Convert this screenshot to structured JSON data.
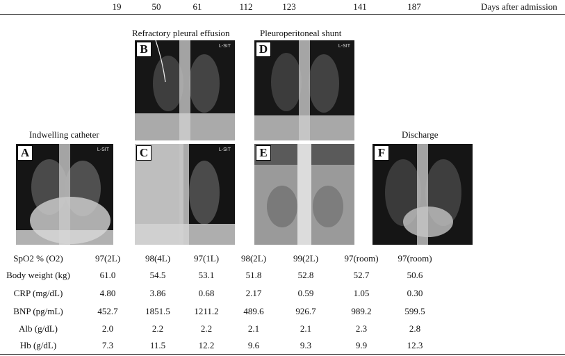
{
  "timeline": {
    "days": [
      "19",
      "50",
      "61",
      "112",
      "123",
      "141",
      "187"
    ],
    "axis_title": "Days after admission"
  },
  "captions": {
    "top_left": "Refractory pleural effusion",
    "top_right": "Pleuroperitoneal shunt",
    "bottom_left": "Indwelling catheter",
    "bottom_right": "Discharge"
  },
  "panels": [
    {
      "id": "A",
      "marker": "L-SIT"
    },
    {
      "id": "B",
      "marker": "L-SIT"
    },
    {
      "id": "C",
      "marker": "L-SIT"
    },
    {
      "id": "D",
      "marker": "L-SIT"
    },
    {
      "id": "E",
      "marker": ""
    },
    {
      "id": "F",
      "marker": ""
    }
  ],
  "table": {
    "rows": [
      {
        "label": "SpO2 % (O2)",
        "values": [
          "97(2L)",
          "98(4L)",
          "97(1L)",
          "98(2L)",
          "99(2L)",
          "97(room)",
          "97(room)"
        ]
      },
      {
        "label": "Body weight (kg)",
        "values": [
          "61.0",
          "54.5",
          "53.1",
          "51.8",
          "52.8",
          "52.7",
          "50.6"
        ]
      },
      {
        "label": "CRP (mg/dL)",
        "values": [
          "4.80",
          "3.86",
          "0.68",
          "2.17",
          "0.59",
          "1.05",
          "0.30"
        ]
      },
      {
        "label": "BNP (pg/mL)",
        "values": [
          "452.7",
          "1851.5",
          "1211.2",
          "489.6",
          "926.7",
          "989.2",
          "599.5"
        ]
      },
      {
        "label": "Alb (g/dL)",
        "values": [
          "2.0",
          "2.2",
          "2.2",
          "2.1",
          "2.1",
          "2.3",
          "2.8"
        ]
      },
      {
        "label": "Hb (g/dL)",
        "values": [
          "7.3",
          "11.5",
          "12.2",
          "9.6",
          "9.3",
          "9.9",
          "12.3"
        ]
      }
    ]
  }
}
